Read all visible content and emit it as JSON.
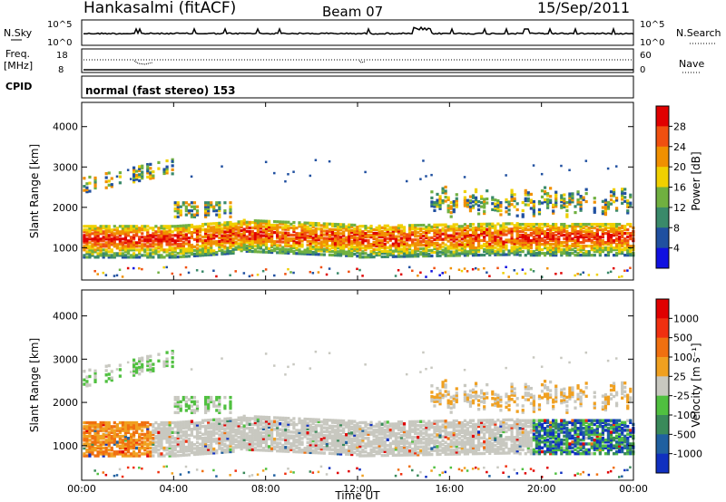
{
  "header": {
    "station": "Hankasalmi (fitACF)",
    "beam": "Beam 07",
    "date": "15/Sep/2011"
  },
  "strip_panels": {
    "nsky": {
      "left_label": "N.Sky",
      "right_label": "N.Search",
      "left_ticks": [
        "10^5",
        "10^0"
      ],
      "right_ticks": [
        "10^5",
        "10^0"
      ]
    },
    "freq": {
      "left_label_lines": [
        "Freq.",
        "[MHz]"
      ],
      "right_label": "Nave",
      "left_ticks": [
        "18",
        "8"
      ],
      "right_ticks": [
        "60",
        "0"
      ]
    },
    "cpid": {
      "label": "CPID",
      "text": "normal (fast stereo) 153"
    }
  },
  "chart_data": [
    {
      "type": "heatmap",
      "name": "power",
      "ylabel": "Slant Range [km]",
      "ylim": [
        200,
        4600
      ],
      "yticks": [
        "1000",
        "2000",
        "3000",
        "4000"
      ],
      "xlim": [
        0,
        24
      ],
      "colorbar": {
        "label": "Power [dB]",
        "range": [
          0,
          32
        ],
        "ticks": [
          "4",
          "8",
          "12",
          "16",
          "20",
          "24",
          "28"
        ],
        "colors": [
          "#1010e0",
          "#2050a0",
          "#3a8a6a",
          "#70b040",
          "#f0d000",
          "#f09000",
          "#f05010",
          "#e00000"
        ]
      }
    },
    {
      "type": "heatmap",
      "name": "velocity",
      "ylabel": "Slant Range [km]",
      "ylim": [
        200,
        4600
      ],
      "yticks": [
        "1000",
        "2000",
        "3000",
        "4000"
      ],
      "xlim": [
        0,
        24
      ],
      "xticks": [
        "00:00",
        "04:00",
        "08:00",
        "12:00",
        "16:00",
        "20:00",
        "00:00"
      ],
      "xlabel": "Time UT",
      "colorbar": {
        "label": "Velocity [m s⁻¹]",
        "ticks": [
          "1000",
          "500",
          "100",
          "25",
          "-25",
          "-100",
          "-500",
          "-1000"
        ],
        "colors": [
          "#1030c0",
          "#2060a0",
          "#3a8a5a",
          "#50c040",
          "#c8c8c0",
          "#f0a020",
          "#f07010",
          "#f03010",
          "#e00000"
        ]
      }
    }
  ]
}
